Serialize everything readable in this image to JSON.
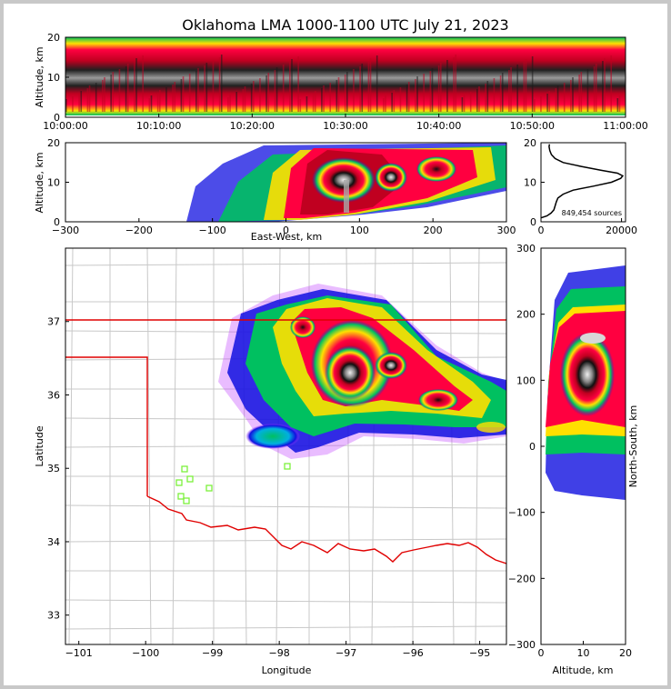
{
  "title": "Oklahoma LMA 1000-1100 UTC July 21, 2023",
  "chart_data": [
    {
      "panel": "altitude-time",
      "type": "heatmap",
      "ylabel": "Altitude, km",
      "ylim": [
        0,
        20
      ],
      "yticks": [
        "0",
        "10",
        "20"
      ],
      "xticks": [
        "10:00:00",
        "10:10:00",
        "10:20:00",
        "10:30:00",
        "10:40:00",
        "10:50:00",
        "11:00:00"
      ]
    },
    {
      "panel": "altitude-eastwest",
      "type": "heatmap",
      "xlabel": "East-West, km",
      "ylabel": "Altitude, km",
      "xlim": [
        -300,
        300
      ],
      "ylim": [
        0,
        20
      ],
      "xticks": [
        "−300",
        "−200",
        "−100",
        "0",
        "100",
        "200",
        "300"
      ],
      "yticks": [
        "0",
        "10",
        "20"
      ]
    },
    {
      "panel": "altitude-histogram",
      "type": "line",
      "xlim": [
        0,
        21000
      ],
      "ylim": [
        0,
        20
      ],
      "xticks": [
        "0",
        "20000"
      ],
      "yticks": [
        "0",
        "10",
        "20"
      ],
      "annotation": "849,454 sources",
      "points": [
        [
          0,
          1.0
        ],
        [
          1500,
          1.5
        ],
        [
          2500,
          2.2
        ],
        [
          3200,
          3.0
        ],
        [
          3500,
          4.0
        ],
        [
          3800,
          5.0
        ],
        [
          4200,
          6.0
        ],
        [
          5500,
          7.0
        ],
        [
          8000,
          8.0
        ],
        [
          13000,
          9.0
        ],
        [
          17500,
          10.0
        ],
        [
          19800,
          11.0
        ],
        [
          20300,
          11.6
        ],
        [
          19000,
          12.3
        ],
        [
          15000,
          13.0
        ],
        [
          10000,
          14.0
        ],
        [
          5500,
          15.0
        ],
        [
          3500,
          16.0
        ],
        [
          2600,
          17.0
        ],
        [
          2200,
          18.0
        ],
        [
          2000,
          19.0
        ],
        [
          2100,
          19.6
        ]
      ]
    },
    {
      "panel": "plan-view",
      "type": "heatmap",
      "xlabel": "Longitude",
      "ylabel": "Latitude",
      "xlim": [
        -101.2,
        -94.6
      ],
      "ylim": [
        32.6,
        38.0
      ],
      "xticks": [
        "−101",
        "−100",
        "−99",
        "−98",
        "−97",
        "−96",
        "−95"
      ],
      "yticks": [
        "33",
        "34",
        "35",
        "36",
        "37"
      ]
    },
    {
      "panel": "northsouth-altitude",
      "type": "heatmap",
      "xlabel": "Altitude, km",
      "ylabel": "North-South, km",
      "xlim": [
        0,
        20
      ],
      "ylim": [
        -300,
        300
      ],
      "xticks": [
        "0",
        "10",
        "20"
      ],
      "yticks": [
        "−300",
        "−200",
        "−100",
        "0",
        "100",
        "200",
        "300"
      ]
    }
  ],
  "colors": {
    "low": "#1010e0",
    "mid": "#00c060",
    "high": "#ffe000",
    "dense": "#e00000",
    "densest": "#101010",
    "border": "#e00000",
    "county": "#c8c8c8",
    "station": "#7cf03c"
  }
}
